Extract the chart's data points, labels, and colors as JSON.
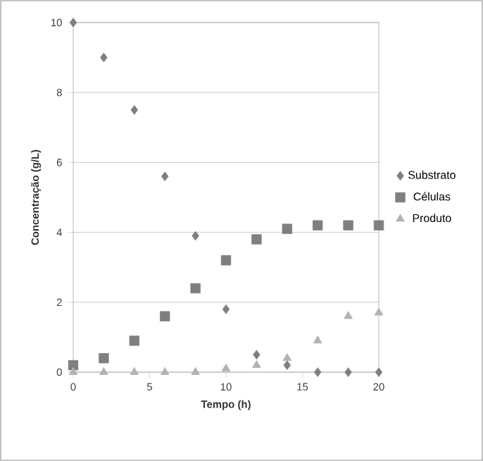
{
  "chart_data": {
    "type": "scatter",
    "xlabel": "Tempo (h)",
    "ylabel": "Concentração (g/L)",
    "x": [
      0,
      2,
      4,
      6,
      8,
      10,
      12,
      14,
      16,
      18,
      20
    ],
    "series": [
      {
        "name": "Substrato",
        "color": "#7f7f7f",
        "marker": "diamond",
        "values": [
          10,
          9.0,
          7.5,
          5.6,
          3.9,
          1.8,
          0.5,
          0.2,
          0,
          0,
          0
        ]
      },
      {
        "name": "Células",
        "color": "#7f7f7f",
        "marker": "square",
        "values": [
          0.2,
          0.4,
          0.9,
          1.6,
          2.4,
          3.2,
          3.8,
          4.1,
          4.2,
          4.2,
          4.2
        ]
      },
      {
        "name": "Produto",
        "color": "#b3b3b3",
        "marker": "triangle",
        "values": [
          0,
          0,
          0,
          0,
          0,
          0.1,
          0.2,
          0.4,
          0.9,
          1.6,
          1.7
        ]
      }
    ],
    "xlim": [
      0,
      20
    ],
    "ylim": [
      0,
      10
    ],
    "xticks": [
      0,
      5,
      10,
      15,
      20
    ],
    "yticks": [
      0,
      2,
      4,
      6,
      8,
      10
    ],
    "grid": "y",
    "legend": "right"
  }
}
